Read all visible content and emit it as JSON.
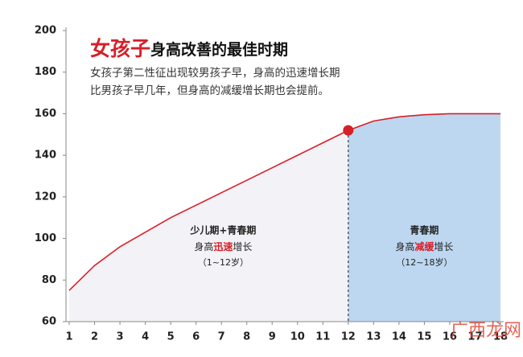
{
  "chart_data": {
    "type": "area-line",
    "title_highlight": "女孩子",
    "title_rest": "身高改善的最佳时期",
    "subtitle": [
      "女孩子第二性征出现较男孩子早，身高的迅速增长期",
      "比男孩子早几年，但身高的减缓增长期也会提前。"
    ],
    "x": [
      1,
      2,
      3,
      4,
      5,
      6,
      7,
      8,
      9,
      10,
      11,
      12,
      13,
      14,
      15,
      16,
      17,
      18
    ],
    "series": [
      {
        "color": "#d62028",
        "values": [
          75,
          87,
          96,
          103,
          110,
          116,
          122,
          128,
          134,
          140,
          146,
          152,
          156.5,
          158.5,
          159.5,
          160,
          160,
          160
        ]
      }
    ],
    "xlim": [
      1,
      18
    ],
    "ylim": [
      60,
      200
    ],
    "xticks": [
      1,
      2,
      3,
      4,
      5,
      6,
      7,
      8,
      9,
      10,
      11,
      12,
      13,
      14,
      15,
      16,
      17,
      18
    ],
    "yticks": [
      60,
      80,
      100,
      120,
      140,
      160,
      180,
      200
    ],
    "marker_x": 12,
    "regions": [
      {
        "from": 1,
        "to": 12,
        "color": "#f3f2f6",
        "name": "少儿期+青春期",
        "desc": [
          "身高",
          "迅速",
          "增长"
        ],
        "range": "（1~12岁）"
      },
      {
        "from": 12,
        "to": 18,
        "color": "#bdd7f0",
        "name": "青春期",
        "desc": [
          "身高",
          "减缓",
          "增长"
        ],
        "range": "（12~18岁）"
      }
    ],
    "watermark": "广西龙网"
  }
}
